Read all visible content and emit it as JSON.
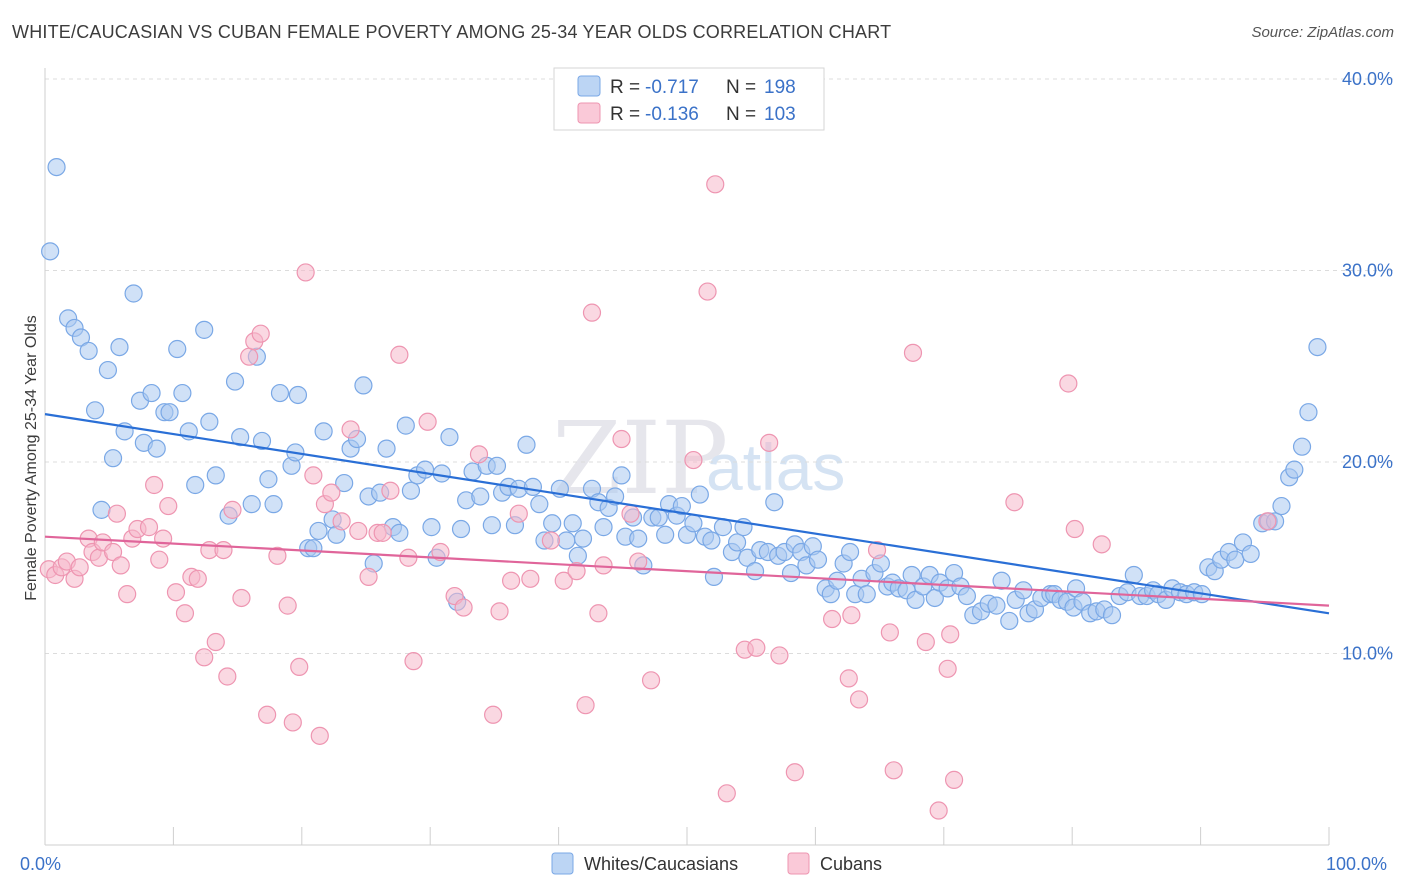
{
  "title": "WHITE/CAUCASIAN VS CUBAN FEMALE POVERTY AMONG 25-34 YEAR OLDS CORRELATION CHART",
  "source": "Source: ZipAtlas.com",
  "watermark": {
    "zip": "ZIP",
    "atlas": "atlas"
  },
  "colors": {
    "blue": "#a9c8f0",
    "blue_edge": "#7aa8e6",
    "blue_line": "#2a6fd6",
    "pink": "#f5b8cb",
    "pink_edge": "#ee95b1",
    "pink_line": "#e0659a",
    "accent_text": "#3b72c8"
  },
  "legend": {
    "rows": [
      {
        "r_label": "R =",
        "r_value": "-0.717",
        "n_label": "N =",
        "n_value": "198",
        "color": "blue"
      },
      {
        "r_label": "R =",
        "r_value": "-0.136",
        "n_label": "N =",
        "n_value": "103",
        "color": "pink"
      }
    ]
  },
  "bottom_legend": [
    "Whites/Caucasians",
    "Cubans"
  ],
  "chart_data": {
    "type": "scatter",
    "title": "WHITE/CAUCASIAN VS CUBAN FEMALE POVERTY AMONG 25-34 YEAR OLDS CORRELATION CHART",
    "xlabel": "",
    "ylabel": "Female Poverty Among 25-34 Year Olds",
    "xlim": [
      0,
      100
    ],
    "ylim": [
      0,
      40
    ],
    "x_tick_labels": [
      "0.0%",
      "100.0%"
    ],
    "y_ticks": [
      10,
      20,
      30,
      40
    ],
    "y_tick_labels": [
      "10.0%",
      "20.0%",
      "30.0%",
      "40.0%"
    ],
    "grid": true,
    "legend_position": "top-center",
    "series": [
      {
        "name": "Whites/Caucasians",
        "color": "blue",
        "trend": {
          "x": [
            0,
            100
          ],
          "y": [
            22.5,
            12.1
          ]
        },
        "points": [
          [
            0.4,
            31
          ],
          [
            0.9,
            35.4
          ],
          [
            1.8,
            27.5
          ],
          [
            2.3,
            27
          ],
          [
            2.8,
            26.5
          ],
          [
            3.4,
            25.8
          ],
          [
            3.9,
            22.7
          ],
          [
            4.4,
            17.5
          ],
          [
            4.9,
            24.8
          ],
          [
            5.3,
            20.2
          ],
          [
            5.8,
            26
          ],
          [
            6.2,
            21.6
          ],
          [
            6.9,
            28.8
          ],
          [
            7.4,
            23.2
          ],
          [
            7.7,
            21
          ],
          [
            8.3,
            23.6
          ],
          [
            8.7,
            20.7
          ],
          [
            9.3,
            22.6
          ],
          [
            9.7,
            22.6
          ],
          [
            10.3,
            25.9
          ],
          [
            10.7,
            23.6
          ],
          [
            11.2,
            21.6
          ],
          [
            11.7,
            18.8
          ],
          [
            12.4,
            26.9
          ],
          [
            12.8,
            22.1
          ],
          [
            13.3,
            19.3
          ],
          [
            14.3,
            17.2
          ],
          [
            14.8,
            24.2
          ],
          [
            15.2,
            21.3
          ],
          [
            16.1,
            17.8
          ],
          [
            16.5,
            25.5
          ],
          [
            16.9,
            21.1
          ],
          [
            17.4,
            19.1
          ],
          [
            17.8,
            17.8
          ],
          [
            18.3,
            23.6
          ],
          [
            19.2,
            19.8
          ],
          [
            19.5,
            20.5
          ],
          [
            19.7,
            23.5
          ],
          [
            20.5,
            15.5
          ],
          [
            20.9,
            15.5
          ],
          [
            21.3,
            16.4
          ],
          [
            21.7,
            21.6
          ],
          [
            22.4,
            17
          ],
          [
            22.7,
            16.2
          ],
          [
            23.3,
            18.9
          ],
          [
            23.8,
            20.7
          ],
          [
            24.3,
            21.2
          ],
          [
            24.8,
            24
          ],
          [
            25.2,
            18.2
          ],
          [
            25.6,
            14.7
          ],
          [
            26.1,
            18.4
          ],
          [
            26.6,
            20.7
          ],
          [
            27.1,
            16.6
          ],
          [
            27.6,
            16.3
          ],
          [
            28.1,
            21.9
          ],
          [
            28.5,
            18.5
          ],
          [
            29,
            19.3
          ],
          [
            29.6,
            19.6
          ],
          [
            30.1,
            16.6
          ],
          [
            30.5,
            15
          ],
          [
            30.9,
            19.4
          ],
          [
            31.5,
            21.3
          ],
          [
            32.1,
            12.7
          ],
          [
            32.4,
            16.5
          ],
          [
            32.8,
            18
          ],
          [
            33.3,
            19.5
          ],
          [
            33.9,
            18.2
          ],
          [
            34.4,
            19.8
          ],
          [
            34.8,
            16.7
          ],
          [
            35.2,
            19.8
          ],
          [
            35.6,
            18.4
          ],
          [
            36.1,
            18.7
          ],
          [
            36.6,
            16.7
          ],
          [
            36.9,
            18.6
          ],
          [
            37.5,
            20.9
          ],
          [
            38,
            18.7
          ],
          [
            38.5,
            17.8
          ],
          [
            38.9,
            15.9
          ],
          [
            39.5,
            16.8
          ],
          [
            40.1,
            18.6
          ],
          [
            40.6,
            15.9
          ],
          [
            41.1,
            16.8
          ],
          [
            41.5,
            15.1
          ],
          [
            41.9,
            16.0
          ],
          [
            42.6,
            18.6
          ],
          [
            43.1,
            17.9
          ],
          [
            43.5,
            16.6
          ],
          [
            43.9,
            17.6
          ],
          [
            44.4,
            18.2
          ],
          [
            44.9,
            19.3
          ],
          [
            45.2,
            16.1
          ],
          [
            45.8,
            17.1
          ],
          [
            46.2,
            16.0
          ],
          [
            46.6,
            14.6
          ],
          [
            47.3,
            17.1
          ],
          [
            47.8,
            17.1
          ],
          [
            48.3,
            16.2
          ],
          [
            48.6,
            17.8
          ],
          [
            49.2,
            17.2
          ],
          [
            49.6,
            17.7
          ],
          [
            50,
            16.2
          ],
          [
            50.5,
            16.8
          ],
          [
            51,
            18.3
          ],
          [
            51.4,
            16.1
          ],
          [
            51.9,
            15.9
          ],
          [
            52.1,
            14.0
          ],
          [
            52.8,
            16.6
          ],
          [
            53.5,
            15.3
          ],
          [
            53.9,
            15.8
          ],
          [
            54.4,
            16.6
          ],
          [
            54.7,
            15.0
          ],
          [
            55.3,
            14.3
          ],
          [
            55.7,
            15.4
          ],
          [
            56.3,
            15.3
          ],
          [
            56.8,
            17.9
          ],
          [
            57.1,
            15.1
          ],
          [
            57.6,
            15.3
          ],
          [
            58.1,
            14.2
          ],
          [
            58.4,
            15.7
          ],
          [
            58.9,
            15.3
          ],
          [
            59.3,
            14.6
          ],
          [
            59.8,
            15.6
          ],
          [
            60.2,
            14.9
          ],
          [
            60.8,
            13.4
          ],
          [
            61.2,
            13.1
          ],
          [
            61.7,
            13.8
          ],
          [
            62.2,
            14.7
          ],
          [
            62.7,
            15.3
          ],
          [
            63.1,
            13.1
          ],
          [
            63.6,
            13.9
          ],
          [
            64,
            13.1
          ],
          [
            64.6,
            14.2
          ],
          [
            65.1,
            14.7
          ],
          [
            65.6,
            13.5
          ],
          [
            66,
            13.7
          ],
          [
            66.5,
            13.4
          ],
          [
            67.1,
            13.3
          ],
          [
            67.5,
            14.1
          ],
          [
            67.8,
            12.8
          ],
          [
            68.4,
            13.5
          ],
          [
            68.9,
            14.1
          ],
          [
            69.3,
            12.9
          ],
          [
            69.7,
            13.7
          ],
          [
            70.3,
            13.4
          ],
          [
            70.8,
            14.2
          ],
          [
            71.3,
            13.5
          ],
          [
            71.8,
            13.0
          ],
          [
            72.3,
            12.0
          ],
          [
            72.9,
            12.2
          ],
          [
            73.5,
            12.6
          ],
          [
            74.1,
            12.5
          ],
          [
            74.5,
            13.8
          ],
          [
            75.1,
            11.7
          ],
          [
            75.6,
            12.8
          ],
          [
            76.2,
            13.3
          ],
          [
            76.6,
            12.1
          ],
          [
            77.1,
            12.3
          ],
          [
            77.6,
            12.9
          ],
          [
            78.3,
            13.1
          ],
          [
            78.6,
            13.1
          ],
          [
            79.1,
            12.8
          ],
          [
            79.6,
            12.7
          ],
          [
            80.1,
            12.4
          ],
          [
            80.3,
            13.4
          ],
          [
            80.8,
            12.7
          ],
          [
            81.4,
            12.1
          ],
          [
            81.9,
            12.2
          ],
          [
            82.5,
            12.3
          ],
          [
            83.1,
            12.0
          ],
          [
            83.7,
            13.0
          ],
          [
            84.3,
            13.2
          ],
          [
            84.8,
            14.1
          ],
          [
            85.3,
            13.0
          ],
          [
            85.8,
            13.0
          ],
          [
            86.3,
            13.3
          ],
          [
            86.7,
            13.1
          ],
          [
            87.3,
            12.8
          ],
          [
            87.8,
            13.4
          ],
          [
            88.4,
            13.2
          ],
          [
            88.9,
            13.1
          ],
          [
            89.5,
            13.2
          ],
          [
            90.1,
            13.1
          ],
          [
            90.6,
            14.5
          ],
          [
            91.1,
            14.3
          ],
          [
            91.6,
            14.9
          ],
          [
            92.2,
            15.3
          ],
          [
            92.7,
            14.9
          ],
          [
            93.3,
            15.8
          ],
          [
            93.9,
            15.2
          ],
          [
            94.8,
            16.8
          ],
          [
            95.3,
            16.9
          ],
          [
            95.8,
            16.9
          ],
          [
            96.3,
            17.7
          ],
          [
            96.9,
            19.2
          ],
          [
            97.3,
            19.6
          ],
          [
            97.9,
            20.8
          ],
          [
            98.4,
            22.6
          ],
          [
            99.1,
            26.0
          ]
        ]
      },
      {
        "name": "Cubans",
        "color": "pink",
        "trend": {
          "x": [
            0,
            100
          ],
          "y": [
            16.1,
            12.5
          ]
        },
        "points": [
          [
            0.3,
            14.4
          ],
          [
            0.8,
            14.1
          ],
          [
            1.3,
            14.5
          ],
          [
            1.7,
            14.8
          ],
          [
            2.3,
            13.9
          ],
          [
            2.7,
            14.5
          ],
          [
            3.4,
            16.0
          ],
          [
            3.7,
            15.3
          ],
          [
            4.2,
            15.0
          ],
          [
            4.5,
            15.8
          ],
          [
            5.3,
            15.3
          ],
          [
            5.6,
            17.3
          ],
          [
            5.9,
            14.6
          ],
          [
            6.4,
            13.1
          ],
          [
            6.8,
            16.0
          ],
          [
            7.2,
            16.5
          ],
          [
            8.1,
            16.6
          ],
          [
            8.5,
            18.8
          ],
          [
            8.9,
            14.9
          ],
          [
            9.2,
            16.0
          ],
          [
            9.6,
            17.7
          ],
          [
            10.2,
            13.2
          ],
          [
            10.9,
            12.1
          ],
          [
            11.4,
            14.0
          ],
          [
            11.9,
            13.9
          ],
          [
            12.4,
            9.8
          ],
          [
            12.8,
            15.4
          ],
          [
            13.3,
            10.6
          ],
          [
            13.9,
            15.4
          ],
          [
            14.2,
            8.8
          ],
          [
            14.6,
            17.5
          ],
          [
            15.3,
            12.9
          ],
          [
            15.9,
            25.5
          ],
          [
            16.3,
            26.3
          ],
          [
            16.8,
            26.7
          ],
          [
            17.3,
            6.8
          ],
          [
            18.1,
            15.1
          ],
          [
            18.9,
            12.5
          ],
          [
            19.3,
            6.4
          ],
          [
            19.8,
            9.3
          ],
          [
            20.3,
            29.9
          ],
          [
            20.9,
            19.3
          ],
          [
            21.4,
            5.7
          ],
          [
            21.8,
            17.8
          ],
          [
            22.3,
            18.4
          ],
          [
            23.1,
            16.9
          ],
          [
            23.8,
            21.7
          ],
          [
            24.4,
            16.4
          ],
          [
            25.2,
            14.0
          ],
          [
            25.9,
            16.3
          ],
          [
            26.3,
            16.3
          ],
          [
            26.9,
            18.5
          ],
          [
            27.6,
            25.6
          ],
          [
            28.3,
            15.0
          ],
          [
            28.7,
            9.6
          ],
          [
            29.8,
            22.1
          ],
          [
            30.8,
            15.3
          ],
          [
            31.9,
            13.0
          ],
          [
            32.6,
            12.4
          ],
          [
            33.8,
            20.4
          ],
          [
            34.9,
            6.8
          ],
          [
            35.4,
            12.2
          ],
          [
            36.3,
            13.8
          ],
          [
            36.9,
            17.3
          ],
          [
            37.8,
            13.9
          ],
          [
            39.4,
            15.9
          ],
          [
            40.4,
            13.8
          ],
          [
            41.4,
            14.3
          ],
          [
            42.1,
            7.3
          ],
          [
            42.6,
            27.8
          ],
          [
            43.1,
            12.1
          ],
          [
            43.5,
            14.6
          ],
          [
            44.9,
            21.2
          ],
          [
            45.6,
            17.3
          ],
          [
            46.2,
            14.8
          ],
          [
            47.2,
            8.6
          ],
          [
            50.5,
            20.1
          ],
          [
            51.6,
            28.9
          ],
          [
            52.2,
            34.5
          ],
          [
            53.1,
            2.7
          ],
          [
            54.5,
            10.2
          ],
          [
            55.4,
            10.3
          ],
          [
            56.4,
            21.0
          ],
          [
            57.2,
            9.9
          ],
          [
            58.4,
            3.8
          ],
          [
            61.3,
            11.8
          ],
          [
            62.8,
            12.0
          ],
          [
            62.6,
            8.7
          ],
          [
            63.4,
            7.6
          ],
          [
            64.8,
            15.4
          ],
          [
            65.8,
            11.1
          ],
          [
            66.1,
            3.9
          ],
          [
            67.6,
            25.7
          ],
          [
            68.6,
            10.6
          ],
          [
            69.6,
            1.8
          ],
          [
            70.5,
            11.0
          ],
          [
            70.3,
            9.2
          ],
          [
            70.8,
            3.4
          ],
          [
            75.5,
            17.9
          ],
          [
            79.7,
            24.1
          ],
          [
            80.2,
            16.5
          ],
          [
            82.3,
            15.7
          ],
          [
            95.2,
            16.9
          ]
        ]
      }
    ]
  }
}
